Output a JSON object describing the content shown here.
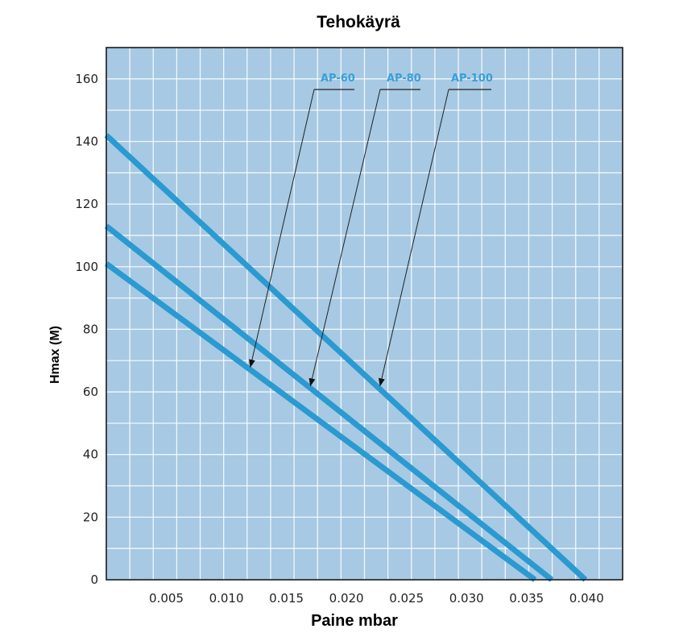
{
  "chart_data": {
    "type": "line",
    "title": "Tehokäyrä",
    "xlabel": "Paine mbar",
    "ylabel": "Hmax (M)",
    "xlim": [
      0,
      0.043
    ],
    "ylim": [
      0,
      170
    ],
    "x_ticks": [
      "0.005",
      "0.010",
      "0.015",
      "0.020",
      "0.025",
      "0.030",
      "0.035",
      "0.040"
    ],
    "y_ticks": [
      "0",
      "20",
      "40",
      "60",
      "80",
      "100",
      "120",
      "140",
      "160"
    ],
    "grid": true,
    "series": [
      {
        "name": "AP-60",
        "x": [
          0,
          0.0357
        ],
        "y": [
          101,
          0
        ],
        "label_point": [
          0.012,
          68
        ]
      },
      {
        "name": "AP-80",
        "x": [
          0,
          0.0371
        ],
        "y": [
          113,
          0
        ],
        "label_point": [
          0.017,
          62
        ]
      },
      {
        "name": "AP-100",
        "x": [
          0,
          0.0399
        ],
        "y": [
          142,
          0
        ],
        "label_point": [
          0.0228,
          62
        ]
      }
    ],
    "colors": {
      "plot_background": "#a7c9e3",
      "grid": "#ffffff",
      "line": "#2a9ad1",
      "legend_text": "#3a9fd8",
      "frame": "#1a1a1a"
    }
  }
}
